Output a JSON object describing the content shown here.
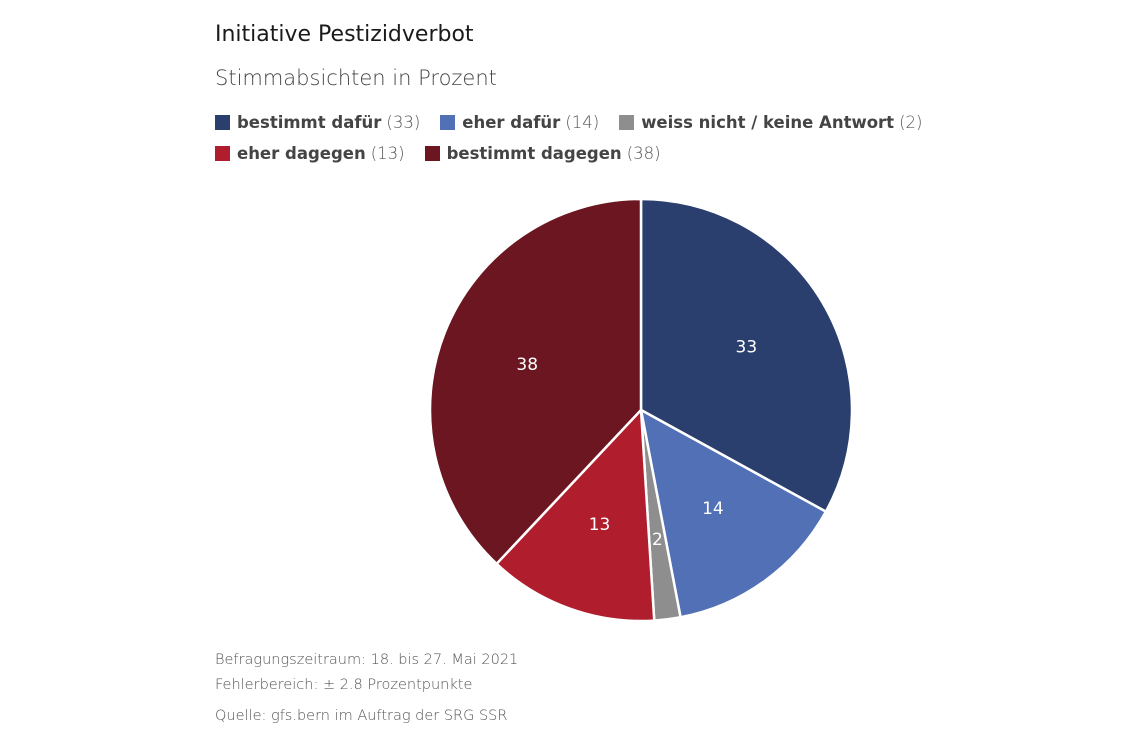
{
  "chart_data": {
    "type": "pie",
    "title": "Initiative Pestizidverbot",
    "subtitle": "Stimmabsichten in Prozent",
    "slices": [
      {
        "label": "bestimmt dafür",
        "value": 33,
        "color": "#2b3f6e"
      },
      {
        "label": "eher dafür",
        "value": 14,
        "color": "#5170b5"
      },
      {
        "label": "weiss nicht / keine Antwort",
        "value": 2,
        "color": "#8e8e8e"
      },
      {
        "label": "eher dagegen",
        "value": 13,
        "color": "#b01d2d"
      },
      {
        "label": "bestimmt dagegen",
        "value": 38,
        "color": "#6b1620"
      }
    ],
    "legend_position": "top-left",
    "start": "12 o'clock",
    "direction": "clockwise"
  },
  "footer": {
    "period": "Befragungszeitraum: 18. bis 27. Mai 2021",
    "error": "Fehlerbereich: ± 2.8 Prozentpunkte",
    "source": "Quelle: gfs.bern im Auftrag der SRG SSR"
  }
}
